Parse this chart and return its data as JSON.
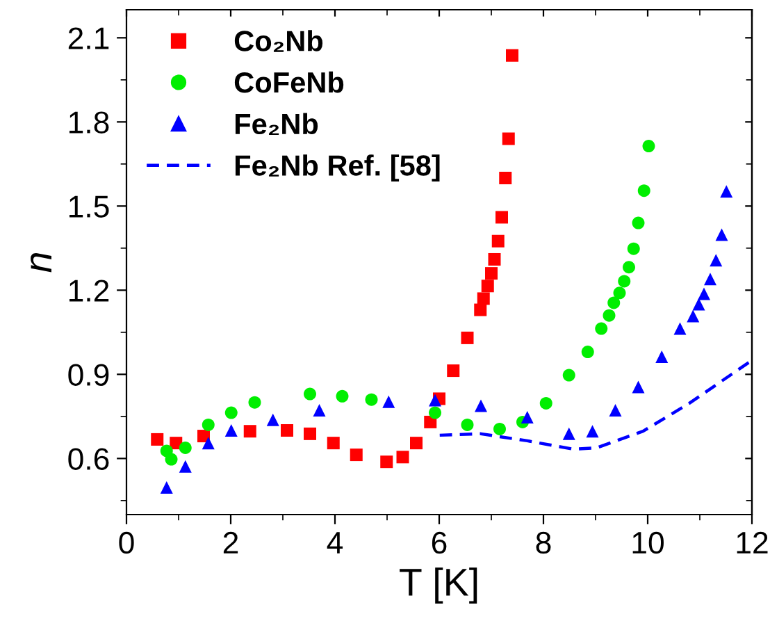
{
  "chart_data": {
    "type": "scatter",
    "xlabel": "T [K]",
    "ylabel": "n",
    "xlim": [
      0,
      12
    ],
    "xticks": [
      0,
      2,
      4,
      6,
      8,
      10,
      12
    ],
    "ylim": [
      0.4,
      2.2
    ],
    "yticks": [
      0.6,
      0.9,
      1.2,
      1.5,
      1.8,
      2.1
    ],
    "grid": false,
    "legend": "top left",
    "series": [
      {
        "name": "Co₂Nb",
        "color": "#ff0000",
        "marker": "square",
        "x": [
          0.59,
          0.95,
          1.48,
          2.37,
          3.08,
          3.52,
          3.97,
          4.41,
          4.99,
          5.3,
          5.56,
          5.83,
          6.0,
          6.27,
          6.54,
          6.79,
          6.85,
          6.93,
          7.0,
          7.06,
          7.13,
          7.2,
          7.27,
          7.33,
          7.4
        ],
        "values": [
          0.668,
          0.655,
          0.68,
          0.697,
          0.7,
          0.688,
          0.655,
          0.613,
          0.588,
          0.605,
          0.655,
          0.73,
          0.813,
          0.913,
          1.03,
          1.13,
          1.17,
          1.215,
          1.26,
          1.31,
          1.375,
          1.46,
          1.6,
          1.74,
          2.037
        ]
      },
      {
        "name": "CoFeNb",
        "color": "#00ee00",
        "marker": "circle",
        "x": [
          0.77,
          0.86,
          1.13,
          1.57,
          2.01,
          2.46,
          3.52,
          4.14,
          4.7,
          5.92,
          6.54,
          7.16,
          7.6,
          8.05,
          8.49,
          8.85,
          9.11,
          9.26,
          9.35,
          9.46,
          9.55,
          9.64,
          9.73,
          9.82,
          9.93,
          10.02
        ],
        "values": [
          0.627,
          0.597,
          0.638,
          0.72,
          0.763,
          0.8,
          0.83,
          0.822,
          0.81,
          0.763,
          0.72,
          0.705,
          0.73,
          0.797,
          0.897,
          0.98,
          1.063,
          1.11,
          1.155,
          1.19,
          1.232,
          1.282,
          1.348,
          1.44,
          1.555,
          1.714
        ]
      },
      {
        "name": "Fe₂Nb",
        "color": "#0000ff",
        "marker": "triangle",
        "x": [
          0.77,
          1.13,
          1.57,
          2.01,
          2.81,
          3.7,
          5.03,
          5.92,
          6.8,
          7.69,
          8.49,
          8.94,
          9.38,
          9.82,
          10.27,
          10.62,
          10.87,
          10.98,
          11.08,
          11.2,
          11.31,
          11.42,
          11.51
        ],
        "values": [
          0.497,
          0.572,
          0.655,
          0.7,
          0.738,
          0.772,
          0.802,
          0.808,
          0.788,
          0.747,
          0.688,
          0.697,
          0.772,
          0.855,
          0.963,
          1.063,
          1.108,
          1.15,
          1.187,
          1.24,
          1.307,
          1.398,
          1.552
        ]
      },
      {
        "name": "Fe₂Nb Ref. [58]",
        "color": "#0000ff",
        "type": "line",
        "line_style": "dashed",
        "marker": "none",
        "x": [
          6.01,
          6.8,
          7.69,
          8.58,
          9.02,
          9.91,
          10.8,
          12.0
        ],
        "values": [
          0.683,
          0.688,
          0.663,
          0.633,
          0.638,
          0.697,
          0.797,
          0.95
        ]
      }
    ]
  }
}
